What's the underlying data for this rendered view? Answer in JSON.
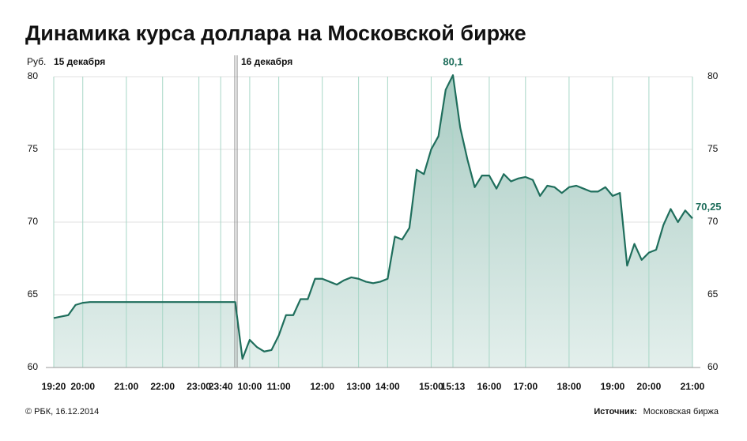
{
  "chart_data": {
    "type": "area",
    "title": "Динамика курса доллара на Московской бирже",
    "y_unit": "Руб.",
    "day_labels": [
      "15 декабря",
      "16 декабря"
    ],
    "categories": [
      "19:20",
      null,
      null,
      null,
      "20:00",
      null,
      null,
      null,
      null,
      null,
      "21:00",
      null,
      null,
      null,
      null,
      "22:00",
      null,
      null,
      null,
      null,
      "23:00",
      null,
      null,
      "23:40",
      null,
      null,
      null,
      "10:00",
      null,
      null,
      null,
      "11:00",
      null,
      null,
      null,
      null,
      null,
      "12:00",
      null,
      null,
      null,
      null,
      "13:00",
      null,
      null,
      null,
      "14:00",
      null,
      null,
      null,
      null,
      null,
      "15:00",
      null,
      null,
      "15:13",
      null,
      null,
      null,
      null,
      "16:00",
      null,
      null,
      null,
      null,
      "17:00",
      null,
      null,
      null,
      null,
      null,
      "18:00",
      null,
      null,
      null,
      null,
      null,
      "19:00",
      null,
      null,
      null,
      null,
      "20:00",
      null,
      null,
      null,
      null,
      null,
      "21:00"
    ],
    "values": [
      63.4,
      63.5,
      63.6,
      64.3,
      64.45,
      64.5,
      64.5,
      64.5,
      64.5,
      64.5,
      64.5,
      64.5,
      64.5,
      64.5,
      64.5,
      64.5,
      64.5,
      64.5,
      64.5,
      64.5,
      64.5,
      64.5,
      64.5,
      64.5,
      64.5,
      64.5,
      60.6,
      61.9,
      61.4,
      61.1,
      61.2,
      62.2,
      63.6,
      63.6,
      64.7,
      64.7,
      66.1,
      66.1,
      65.9,
      65.7,
      66.0,
      66.2,
      66.1,
      65.9,
      65.8,
      65.9,
      66.1,
      69.0,
      68.8,
      69.6,
      73.6,
      73.3,
      75.0,
      75.9,
      79.1,
      80.1,
      76.5,
      74.3,
      72.4,
      73.2,
      73.2,
      72.3,
      73.3,
      72.8,
      73.0,
      73.1,
      72.9,
      71.8,
      72.5,
      72.4,
      72.0,
      72.4,
      72.5,
      72.3,
      72.1,
      72.1,
      72.4,
      71.8,
      72.0,
      67.0,
      68.5,
      67.4,
      67.9,
      68.1,
      69.8,
      70.9,
      70.0,
      70.8,
      70.25
    ],
    "value_labels": [
      null,
      null,
      null,
      null,
      null,
      null,
      null,
      null,
      null,
      null,
      null,
      null,
      null,
      null,
      null,
      null,
      null,
      null,
      null,
      null,
      null,
      null,
      null,
      null,
      null,
      null,
      null,
      null,
      null,
      null,
      null,
      null,
      null,
      null,
      null,
      null,
      null,
      null,
      null,
      null,
      null,
      null,
      null,
      null,
      null,
      null,
      null,
      null,
      null,
      null,
      null,
      null,
      null,
      null,
      null,
      "80,1",
      null,
      null,
      null,
      null,
      null,
      null,
      null,
      null,
      null,
      null,
      null,
      null,
      null,
      null,
      null,
      null,
      null,
      null,
      null,
      null,
      null,
      null,
      null,
      null,
      null,
      null,
      null,
      null,
      null,
      null,
      null,
      null,
      "70,25"
    ],
    "color": "#1f6e5c",
    "fill": "#b4d3cb",
    "ylim": [
      60,
      80
    ],
    "yticks": [
      60,
      65,
      70,
      75,
      80
    ],
    "grid": true
  },
  "footer": {
    "copyright": "© РБК, 16.12.2014",
    "source_label": "Источник:",
    "source": "Московская биржа"
  }
}
